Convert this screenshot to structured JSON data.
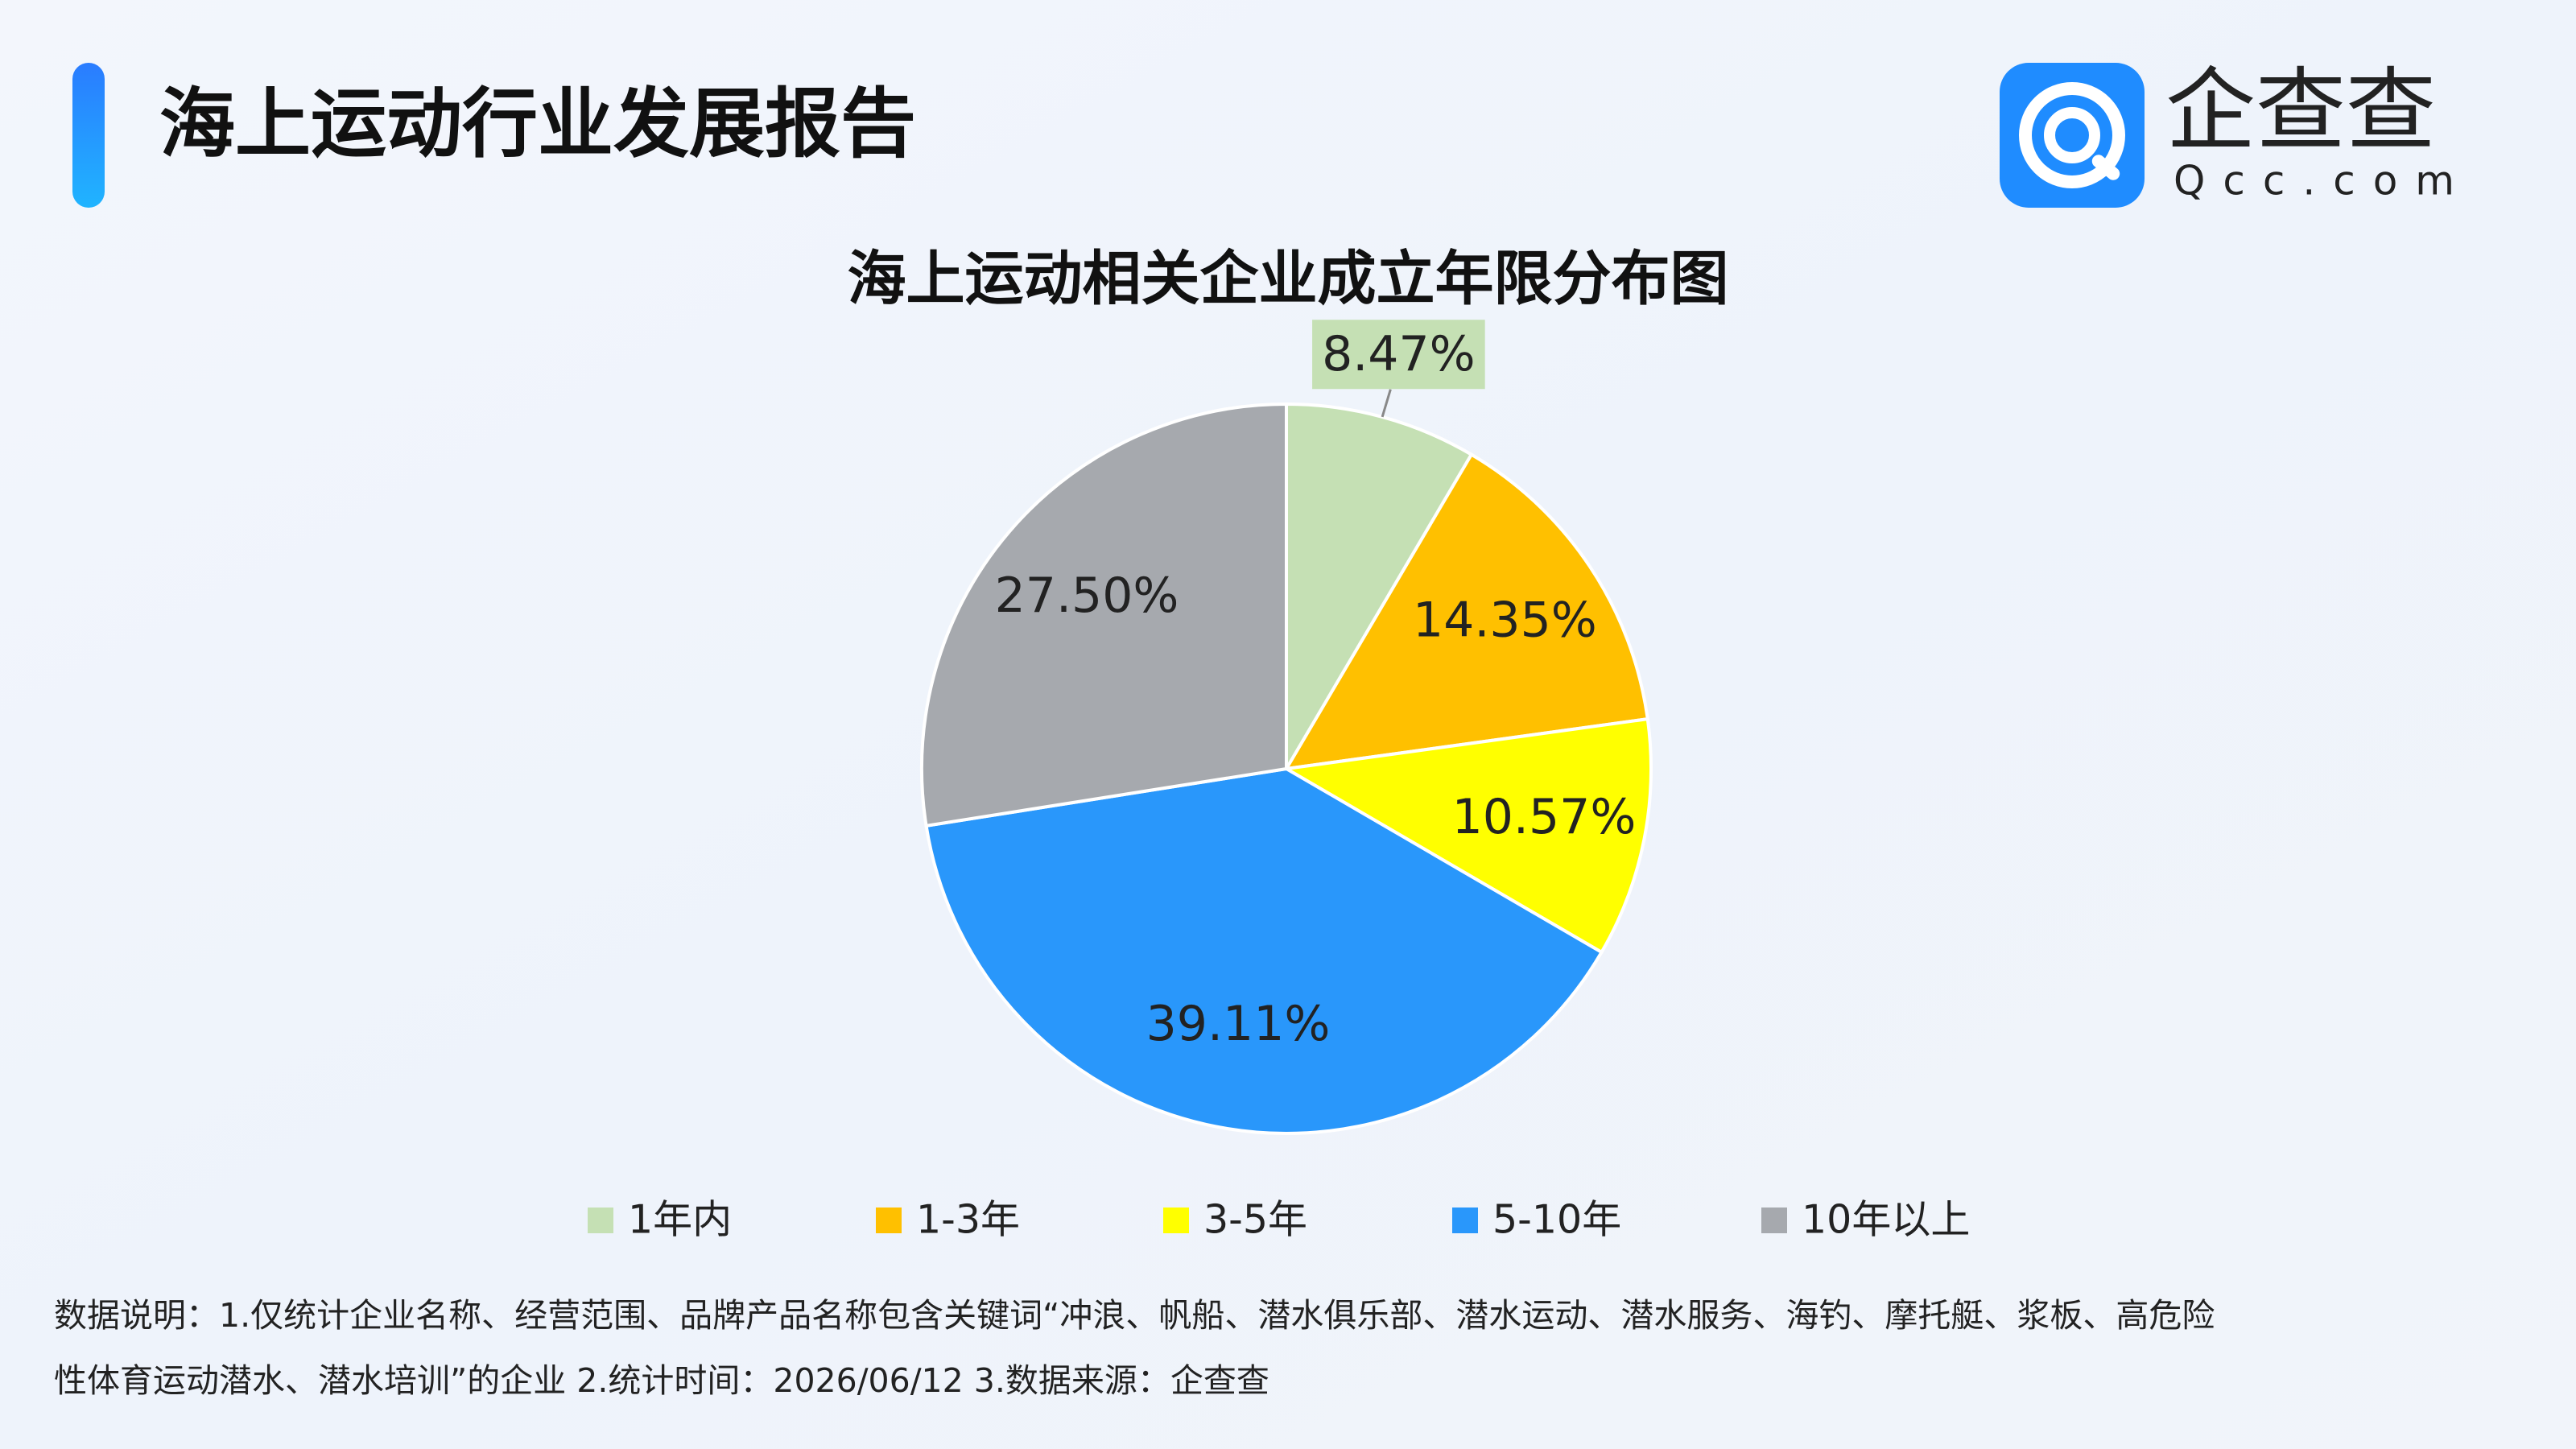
{
  "header": {
    "title": "海上运动行业发展报告",
    "logo_text": "企查查",
    "logo_sub": "Qcc.com"
  },
  "chart_data": {
    "type": "pie",
    "title": "海上运动相关企业成立年限分布图",
    "categories": [
      "1年内",
      "1-3年",
      "3-5年",
      "5-10年",
      "10年以上"
    ],
    "values": [
      8.47,
      14.35,
      10.57,
      39.11,
      27.5
    ],
    "value_labels": [
      "8.47%",
      "14.35%",
      "10.57%",
      "39.11%",
      "27.50%"
    ],
    "colors": [
      "#c5e0b4",
      "#ffc000",
      "#ffff00",
      "#2997fb",
      "#a6a9ae"
    ],
    "legend": "bottom"
  },
  "notes": [
    "数据说明：1.仅统计企业名称、经营范围、品牌产品名称包含关键词“冲浪、帆船、潜水俱乐部、潜水运动、潜水服务、海钓、摩托艇、浆板、高危险",
    "性体育运动潜水、潜水培训”的企业   2.统计时间：2026/06/12    3.数据来源：企查查"
  ]
}
